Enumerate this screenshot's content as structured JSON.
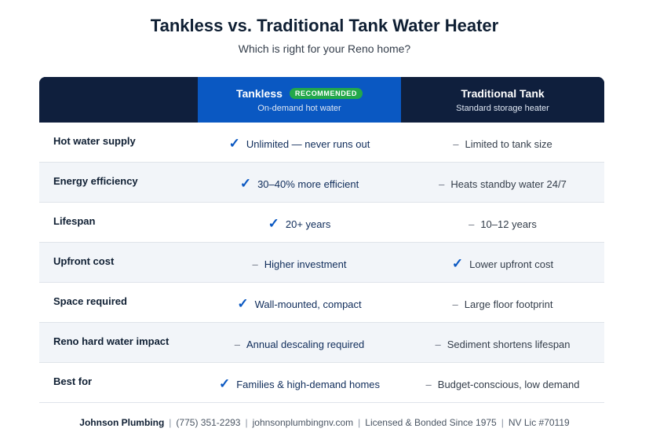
{
  "title": "Tankless vs. Traditional Tank Water Heater",
  "subtitle": "Which is right for your Reno home?",
  "header": {
    "tankless": {
      "name": "Tankless",
      "badge": "RECOMMENDED",
      "sub": "On-demand hot water"
    },
    "traditional": {
      "name": "Traditional Tank",
      "sub": "Standard storage heater"
    }
  },
  "rows": [
    {
      "label": "Hot water supply",
      "tankless": {
        "mark": "check",
        "text": "Unlimited — never runs out"
      },
      "traditional": {
        "mark": "dash",
        "text": "Limited to tank size"
      }
    },
    {
      "label": "Energy efficiency",
      "tankless": {
        "mark": "check",
        "text": "30–40% more efficient"
      },
      "traditional": {
        "mark": "dash",
        "text": "Heats standby water 24/7"
      }
    },
    {
      "label": "Lifespan",
      "tankless": {
        "mark": "check",
        "text": "20+ years"
      },
      "traditional": {
        "mark": "dash",
        "text": "10–12 years"
      }
    },
    {
      "label": "Upfront cost",
      "tankless": {
        "mark": "dash",
        "text": "Higher investment"
      },
      "traditional": {
        "mark": "check",
        "text": "Lower upfront cost"
      }
    },
    {
      "label": "Space required",
      "tankless": {
        "mark": "check",
        "text": "Wall-mounted, compact"
      },
      "traditional": {
        "mark": "dash",
        "text": "Large floor footprint"
      }
    },
    {
      "label": "Reno hard water impact",
      "tankless": {
        "mark": "dash",
        "text": "Annual descaling required"
      },
      "traditional": {
        "mark": "dash",
        "text": "Sediment shortens lifespan"
      }
    },
    {
      "label": "Best for",
      "tankless": {
        "mark": "check",
        "text": "Families & high-demand homes"
      },
      "traditional": {
        "mark": "dash",
        "text": "Budget-conscious, low demand"
      }
    }
  ],
  "marks": {
    "check": "✓",
    "dash": "–"
  },
  "footer": {
    "brand": "Johnson Plumbing",
    "phone": "(775) 351-2293",
    "website": "johnsonplumbingnv.com",
    "license_note": "Licensed & Bonded Since 1975",
    "license": "NV Lic #70119",
    "separator": "|"
  },
  "colors": {
    "header_dark": "#0f1f3d",
    "header_blue": "#0a58c2",
    "badge_green": "#23a84a",
    "row_alt": "#f2f5f9"
  }
}
